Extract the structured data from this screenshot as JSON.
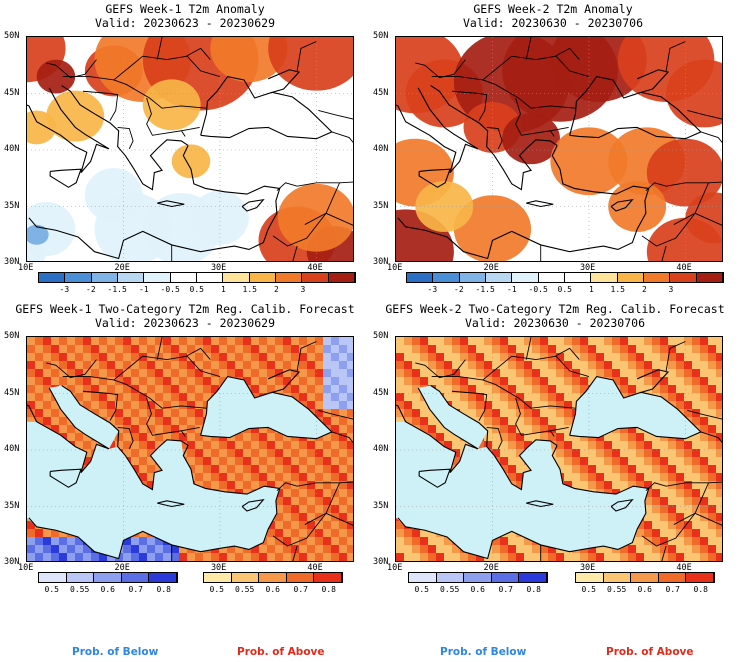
{
  "panels": [
    {
      "title": "GEFS Week-1 T2m Anomaly",
      "valid": "Valid: 20230623 - 20230629"
    },
    {
      "title": "GEFS Week-2 T2m Anomaly",
      "valid": "Valid: 20230630 - 20230706"
    },
    {
      "title": "GEFS Week-1 Two-Category T2m Reg. Calib. Forecast",
      "valid": "Valid: 20230623 - 20230629"
    },
    {
      "title": "GEFS Week-2 Two-Category T2m Reg. Calib. Forecast",
      "valid": "Valid: 20230630 - 20230706"
    }
  ],
  "axes": {
    "lat_labels": [
      "50N",
      "45N",
      "40N",
      "35N",
      "30N"
    ],
    "lon_labels": [
      "10E",
      "20E",
      "30E",
      "40E"
    ]
  },
  "anomaly_colorbar": {
    "labels": [
      "-3",
      "-2",
      "-1.5",
      "-1",
      "-0.5",
      "0.5",
      "1",
      "1.5",
      "2",
      "3"
    ],
    "colors": [
      "#2a6fc4",
      "#4a8ed6",
      "#7fb3e6",
      "#b8d8f2",
      "#e0f2fb",
      "#ffffff",
      "#ffffff",
      "#fde49a",
      "#f9b548",
      "#f17a2a",
      "#d9401c",
      "#a51e12"
    ]
  },
  "below_colorbar": {
    "labels": [
      "0.5",
      "0.55",
      "0.6",
      "0.7",
      "0.8"
    ],
    "colors": [
      "#dfe6fb",
      "#b9c6f6",
      "#8e9ff0",
      "#5c6ee6",
      "#2a3adb"
    ]
  },
  "above_colorbar": {
    "labels": [
      "0.5",
      "0.55",
      "0.6",
      "0.7",
      "0.8"
    ],
    "colors": [
      "#fde9a8",
      "#fbc673",
      "#f6984a",
      "#f06a2a",
      "#e8301a"
    ]
  },
  "legend": {
    "below": "Prob. of Below",
    "above": "Prob. of Above"
  },
  "colors": {
    "sea_fill": "#cdf1f7",
    "below_label": "#2e86e0",
    "above_label": "#e02a1a"
  }
}
